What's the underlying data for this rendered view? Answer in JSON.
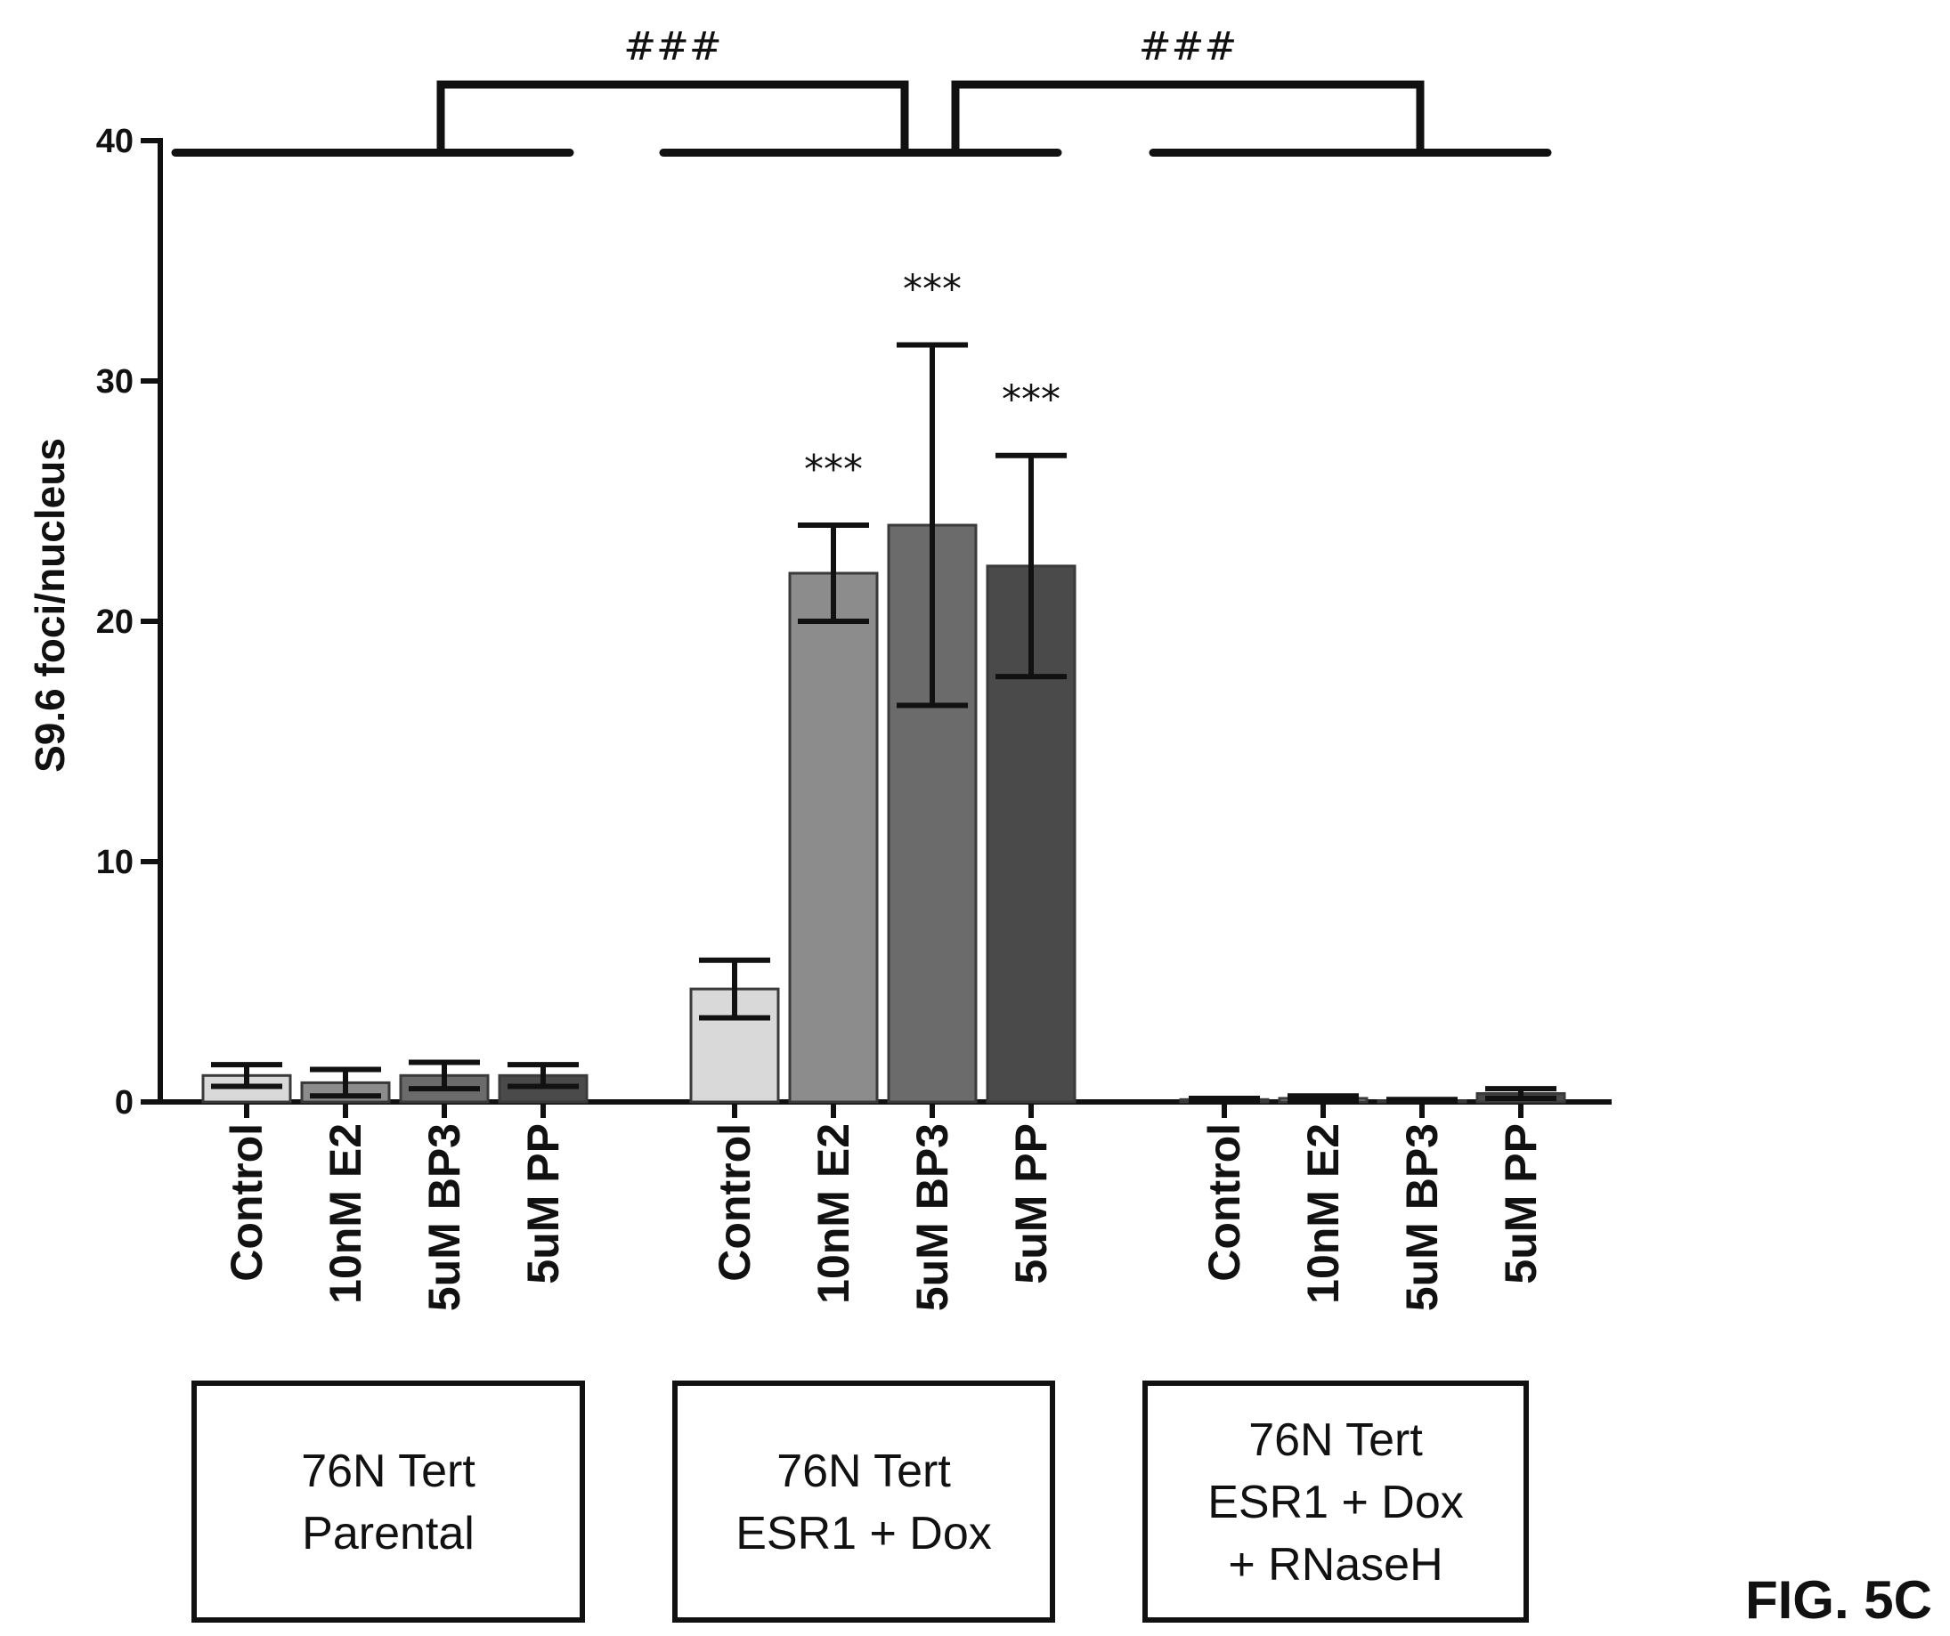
{
  "chart_data": {
    "type": "bar",
    "ylabel": "S9.6 foci/nucleus",
    "ylim": [
      0,
      40
    ],
    "yticks": [
      0,
      10,
      20,
      30,
      40
    ],
    "grid": false,
    "categories": [
      "Control",
      "10nM E2",
      "5uM BP3",
      "5uM PP",
      "Control",
      "10nM E2",
      "5uM BP3",
      "5uM PP",
      "Control",
      "10nM E2",
      "5uM BP3",
      "5uM PP"
    ],
    "values": [
      1.1,
      0.8,
      1.1,
      1.1,
      4.7,
      22.0,
      24.0,
      22.3,
      0.1,
      0.15,
      0.05,
      0.35
    ],
    "error": [
      0.45,
      0.55,
      0.55,
      0.45,
      1.2,
      2.0,
      7.5,
      4.6,
      0.05,
      0.1,
      0.05,
      0.2
    ],
    "bar_colors": [
      "#d9d9d9",
      "#8c8c8c",
      "#6b6b6b",
      "#4a4a4a",
      "#d9d9d9",
      "#8c8c8c",
      "#6b6b6b",
      "#4a4a4a",
      "#d9d9d9",
      "#8c8c8c",
      "#6b6b6b",
      "#4a4a4a"
    ],
    "significance": [
      {
        "bar": 5,
        "label": "***"
      },
      {
        "bar": 6,
        "label": "***"
      },
      {
        "bar": 7,
        "label": "***"
      }
    ],
    "comparisons": [
      {
        "from_group": 0,
        "to_group": 1,
        "label": "###"
      },
      {
        "from_group": 1,
        "to_group": 2,
        "label": "###"
      }
    ],
    "groups": [
      {
        "lines": [
          "76N Tert",
          "Parental"
        ],
        "bars": [
          0,
          1,
          2,
          3
        ]
      },
      {
        "lines": [
          "76N Tert",
          "ESR1 + Dox"
        ],
        "bars": [
          4,
          5,
          6,
          7
        ]
      },
      {
        "lines": [
          "76N Tert",
          "ESR1 + Dox",
          "+ RNaseH"
        ],
        "bars": [
          8,
          9,
          10,
          11
        ]
      }
    ]
  },
  "figure_label": "FIG. 5C"
}
